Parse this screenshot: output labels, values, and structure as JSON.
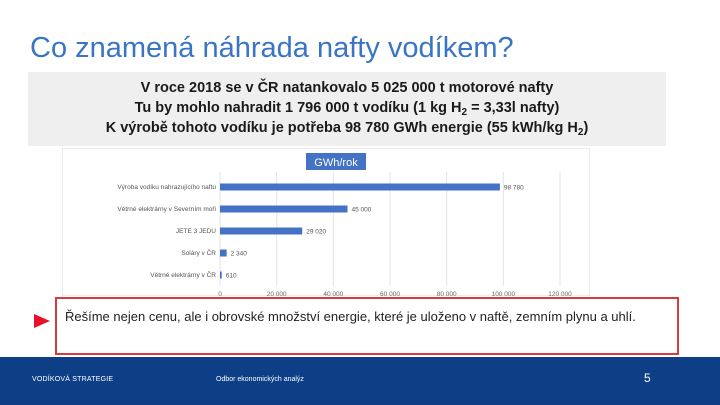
{
  "slide": {
    "title": "Co znamená náhrada nafty vodíkem?",
    "info": {
      "line1": "V roce 2018 se v ČR natankovalo 5 025 000 t motorové nafty",
      "line2_pre": "Tu by mohlo nahradit 1 796 000 t vodíku (1 kg H",
      "line2_sub": "2",
      "line2_post": " = 3,33l nafty)",
      "line3_pre": "K výrobě tohoto vodíku je potřeba 98 780 GWh energie (55 kWh/kg H",
      "line3_sub": "2",
      "line3_post": ")"
    },
    "note": "Řešíme nejen cenu, ale i obrovské množství energie, které je uloženo v naftě, zemním plynu a uhlí.",
    "footer": {
      "left": "VODÍKOVÁ STRATEGIE",
      "middle": "Odbor ekonomických analýz",
      "page": "5"
    }
  },
  "colors": {
    "title": "#3a75c4",
    "bar": "#4472c4",
    "note_border": "#d83b3b",
    "marker": "#e8102a",
    "footer_bg": "#0e3f86"
  },
  "chart_data": {
    "type": "bar",
    "orientation": "horizontal",
    "title": "GWh/rok",
    "categories": [
      "Výroba vodíku nahrazujícího naftu",
      "Větrné elektrárny v Severním moři",
      "JETE 3 JEDU",
      "Soláry v ČR",
      "Větrné elektrárny v ČR"
    ],
    "values": [
      98780,
      45000,
      29020,
      2340,
      610
    ],
    "value_labels": [
      "98 780",
      "45 000",
      "29 020",
      "2 340",
      "610"
    ],
    "xlim": [
      0,
      120000
    ],
    "xticks": [
      0,
      20000,
      40000,
      60000,
      80000,
      100000,
      120000
    ],
    "xtick_labels": [
      "0",
      "20 000",
      "40 000",
      "60 000",
      "80 000",
      "100 000",
      "120 000"
    ],
    "grid": true,
    "legend": "none"
  }
}
